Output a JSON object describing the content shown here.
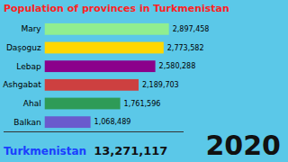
{
  "chart_data": {
    "type": "bar",
    "orientation": "horizontal",
    "title": "Population of provinces in Turkmenistan",
    "categories": [
      "Mary",
      "Daşoguz",
      "Lebap",
      "Ashgabat",
      "Ahal",
      "Balkan"
    ],
    "values": [
      2897458,
      2773582,
      2580288,
      2189703,
      1761596,
      1068489
    ],
    "value_labels": [
      "2,897,458",
      "2,773,582",
      "2,580,288",
      "2,189,703",
      "1,761,596",
      "1,068,489"
    ],
    "colors": [
      "#90ee90",
      "#ffd700",
      "#8b008b",
      "#cd4040",
      "#2e9b57",
      "#6a5acd"
    ],
    "xlim": [
      -960000,
      3240000
    ],
    "data_labels": true,
    "tick_labels": false,
    "grid": false,
    "annotations": [
      "2020",
      "Turkmenistan",
      "13,271,117"
    ]
  }
}
